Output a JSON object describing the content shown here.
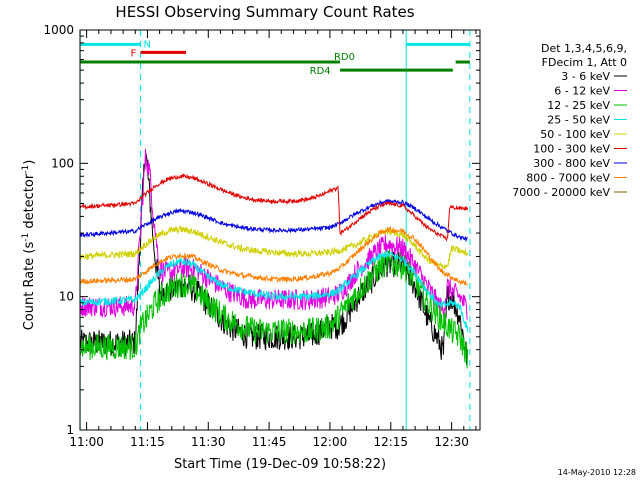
{
  "chart_data": {
    "type": "line",
    "title": "HESSI Observing Summary Count Rates",
    "xlabel": "Start Time (19-Dec-09 10:58:22)",
    "ylabel_main": "Count Rate (s",
    "ylabel_sup1": "-1",
    "ylabel_mid": " detector",
    "ylabel_sup2": "-1",
    "ylabel_end": ")",
    "footer": "14-May-2010 12:28",
    "x_start": "10:58:22",
    "x_end": "12:37:00",
    "xlim_minutes": [
      -1.63,
      97.0
    ],
    "ylim": [
      1,
      1000
    ],
    "y_scale": "log",
    "x_ticks": [
      {
        "label": "11:00",
        "t": 0
      },
      {
        "label": "11:15",
        "t": 15
      },
      {
        "label": "11:30",
        "t": 30
      },
      {
        "label": "11:45",
        "t": 45
      },
      {
        "label": "12:00",
        "t": 60
      },
      {
        "label": "12:15",
        "t": 75
      },
      {
        "label": "12:30",
        "t": 90
      }
    ],
    "y_ticks": [
      {
        "label": "1",
        "v": 1
      },
      {
        "label": "10",
        "v": 10
      },
      {
        "label": "100",
        "v": 100
      },
      {
        "label": "1000",
        "v": 1000
      }
    ],
    "legend_placement": "right",
    "legend_header": [
      "Det 1,3,4,5,6,9,",
      "FDecim 1, Att 0"
    ],
    "series": [
      {
        "name": "3 - 6 keV",
        "color": "#000000",
        "noise": 0.1,
        "points": [
          [
            -1.6,
            4.5
          ],
          [
            12,
            4.5
          ],
          [
            13.5,
            40
          ],
          [
            14.5,
            130
          ],
          [
            15.5,
            60
          ],
          [
            16.5,
            25
          ],
          [
            18,
            11
          ],
          [
            20,
            11
          ],
          [
            24,
            12.5
          ],
          [
            27,
            11
          ],
          [
            31,
            8
          ],
          [
            35,
            6
          ],
          [
            40,
            5
          ],
          [
            45,
            5
          ],
          [
            50,
            5
          ],
          [
            55,
            5
          ],
          [
            60,
            6
          ],
          [
            62,
            6
          ],
          [
            64,
            7
          ],
          [
            67,
            10
          ],
          [
            71,
            14
          ],
          [
            74,
            17.5
          ],
          [
            78,
            17.5
          ],
          [
            81,
            12
          ],
          [
            84,
            7
          ],
          [
            87,
            4.5
          ],
          [
            88,
            3.8
          ],
          [
            89,
            10
          ],
          [
            90,
            10
          ],
          [
            92,
            7
          ],
          [
            93.5,
            4
          ],
          [
            94,
            3
          ]
        ]
      },
      {
        "name": "6 - 12 keV",
        "color": "#e000e0",
        "noise": 0.08,
        "points": [
          [
            -1.6,
            8.5
          ],
          [
            12,
            8.5
          ],
          [
            13.5,
            40
          ],
          [
            14.5,
            110
          ],
          [
            15.5,
            90
          ],
          [
            16.5,
            40
          ],
          [
            18,
            16
          ],
          [
            20,
            15
          ],
          [
            24,
            16.5
          ],
          [
            27,
            16
          ],
          [
            31,
            13
          ],
          [
            35,
            11
          ],
          [
            40,
            9.5
          ],
          [
            45,
            9.5
          ],
          [
            50,
            9.5
          ],
          [
            55,
            9.5
          ],
          [
            60,
            10
          ],
          [
            62,
            10.5
          ],
          [
            64,
            12
          ],
          [
            67,
            16
          ],
          [
            71,
            21
          ],
          [
            74,
            25
          ],
          [
            78,
            23
          ],
          [
            81,
            17
          ],
          [
            84,
            12
          ],
          [
            87,
            8.5
          ],
          [
            88,
            8
          ],
          [
            89,
            12
          ],
          [
            90,
            11
          ],
          [
            92,
            10
          ],
          [
            93.5,
            8.5
          ],
          [
            94,
            8
          ]
        ]
      },
      {
        "name": "12 - 25 keV",
        "color": "#00c000",
        "noise": 0.1,
        "points": [
          [
            -1.6,
            4.2
          ],
          [
            12,
            4.2
          ],
          [
            13.5,
            6
          ],
          [
            15,
            7
          ],
          [
            17,
            9
          ],
          [
            20,
            11
          ],
          [
            23,
            12.5
          ],
          [
            26,
            12
          ],
          [
            30,
            9
          ],
          [
            34,
            7
          ],
          [
            38,
            6
          ],
          [
            42,
            5.5
          ],
          [
            46,
            5.5
          ],
          [
            50,
            5.5
          ],
          [
            55,
            5.5
          ],
          [
            60,
            6
          ],
          [
            62,
            7
          ],
          [
            64,
            8.5
          ],
          [
            67,
            11
          ],
          [
            71,
            15
          ],
          [
            74,
            18
          ],
          [
            78,
            17
          ],
          [
            81,
            13
          ],
          [
            84,
            9
          ],
          [
            87,
            7
          ],
          [
            89,
            6
          ],
          [
            90,
            5.5
          ],
          [
            92,
            5
          ],
          [
            94,
            3.5
          ]
        ]
      },
      {
        "name": "25 - 50 keV",
        "color": "#00e5e5",
        "noise": 0.03,
        "points": [
          [
            -1.6,
            9
          ],
          [
            12,
            9.5
          ],
          [
            14,
            11
          ],
          [
            17,
            14
          ],
          [
            20,
            17
          ],
          [
            23,
            18.5
          ],
          [
            26,
            17.5
          ],
          [
            30,
            14
          ],
          [
            34,
            12
          ],
          [
            38,
            11
          ],
          [
            42,
            10.5
          ],
          [
            46,
            10
          ],
          [
            50,
            10
          ],
          [
            55,
            10
          ],
          [
            60,
            10.5
          ],
          [
            62,
            11
          ],
          [
            64,
            12.5
          ],
          [
            67,
            15
          ],
          [
            71,
            19
          ],
          [
            74,
            21
          ],
          [
            78,
            19
          ],
          [
            81,
            15
          ],
          [
            84,
            11
          ],
          [
            87,
            8.5
          ],
          [
            90,
            9
          ],
          [
            92,
            8.5
          ],
          [
            94,
            5.5
          ]
        ]
      },
      {
        "name": "50 - 100 keV",
        "color": "#d0d000",
        "noise": 0.025,
        "points": [
          [
            -1.6,
            20
          ],
          [
            12,
            21
          ],
          [
            14,
            24
          ],
          [
            17,
            28
          ],
          [
            20,
            31
          ],
          [
            23,
            32
          ],
          [
            26,
            31
          ],
          [
            30,
            28
          ],
          [
            34,
            25
          ],
          [
            38,
            23
          ],
          [
            42,
            22
          ],
          [
            46,
            21.5
          ],
          [
            50,
            21
          ],
          [
            55,
            21
          ],
          [
            60,
            21.5
          ],
          [
            62,
            22
          ],
          [
            64,
            23
          ],
          [
            67,
            25
          ],
          [
            71,
            29
          ],
          [
            74,
            31
          ],
          [
            78,
            29
          ],
          [
            81,
            24
          ],
          [
            84,
            19
          ],
          [
            87,
            17
          ],
          [
            89,
            17
          ],
          [
            90,
            23
          ],
          [
            92,
            22
          ],
          [
            94,
            21
          ]
        ]
      },
      {
        "name": "100 - 300 keV",
        "color": "#e00000",
        "noise": 0.015,
        "points": [
          [
            -1.6,
            47
          ],
          [
            12,
            50
          ],
          [
            14,
            57
          ],
          [
            17,
            68
          ],
          [
            20,
            76
          ],
          [
            23,
            80
          ],
          [
            26,
            78
          ],
          [
            30,
            70
          ],
          [
            34,
            62
          ],
          [
            38,
            56
          ],
          [
            42,
            53
          ],
          [
            46,
            52
          ],
          [
            50,
            52
          ],
          [
            55,
            54
          ],
          [
            58,
            58
          ],
          [
            61,
            64
          ],
          [
            62,
            66
          ],
          [
            62.5,
            30
          ],
          [
            64,
            32
          ],
          [
            67,
            38
          ],
          [
            71,
            46
          ],
          [
            74,
            50
          ],
          [
            78,
            48
          ],
          [
            81,
            40
          ],
          [
            84,
            33
          ],
          [
            87,
            29
          ],
          [
            89,
            27
          ],
          [
            89.5,
            47
          ],
          [
            92,
            46
          ],
          [
            94,
            46
          ]
        ]
      },
      {
        "name": "300 - 800 keV",
        "color": "#0000e0",
        "noise": 0.015,
        "points": [
          [
            -1.6,
            29
          ],
          [
            12,
            31
          ],
          [
            14,
            34
          ],
          [
            17,
            38
          ],
          [
            20,
            42
          ],
          [
            23,
            44
          ],
          [
            26,
            43
          ],
          [
            30,
            39
          ],
          [
            34,
            35
          ],
          [
            38,
            33
          ],
          [
            42,
            32
          ],
          [
            46,
            31.5
          ],
          [
            50,
            31.5
          ],
          [
            55,
            32
          ],
          [
            60,
            33
          ],
          [
            62,
            35
          ],
          [
            64,
            38
          ],
          [
            67,
            43
          ],
          [
            71,
            49
          ],
          [
            74,
            52
          ],
          [
            78,
            51
          ],
          [
            81,
            46
          ],
          [
            84,
            39
          ],
          [
            87,
            34
          ],
          [
            90,
            30
          ],
          [
            92,
            28
          ],
          [
            94,
            27
          ]
        ]
      },
      {
        "name": "800 - 7000 keV",
        "color": "#ff8000",
        "noise": 0.02,
        "points": [
          [
            -1.6,
            13
          ],
          [
            12,
            13.5
          ],
          [
            14,
            15
          ],
          [
            17,
            17.5
          ],
          [
            20,
            19.5
          ],
          [
            23,
            20.5
          ],
          [
            26,
            20
          ],
          [
            30,
            17.5
          ],
          [
            34,
            15.5
          ],
          [
            38,
            14.5
          ],
          [
            42,
            14
          ],
          [
            46,
            13.5
          ],
          [
            50,
            13.5
          ],
          [
            55,
            14
          ],
          [
            60,
            15
          ],
          [
            62,
            16
          ],
          [
            64,
            18
          ],
          [
            67,
            22
          ],
          [
            71,
            28
          ],
          [
            74,
            32
          ],
          [
            78,
            31
          ],
          [
            81,
            27
          ],
          [
            84,
            21
          ],
          [
            87,
            16
          ],
          [
            90,
            14
          ],
          [
            92,
            13
          ],
          [
            94,
            12.5
          ]
        ]
      },
      {
        "name": "7000 - 20000 keV",
        "color": "#806000",
        "noise": 0,
        "points": []
      }
    ],
    "annotations": {
      "flag_labels": [
        {
          "label": "N",
          "color": "#00e5e5"
        },
        {
          "label": "F",
          "color": "#e00000"
        },
        {
          "label": "RD0",
          "color": "#008000"
        },
        {
          "label": "RD4",
          "color": "#008000"
        }
      ],
      "flag_bars": [
        {
          "color": "#00e5e5",
          "t0": -1.6,
          "t1": 13.3,
          "level": 780
        },
        {
          "color": "#00e5e5",
          "t0": 78.8,
          "t1": 94.5,
          "level": 780
        },
        {
          "color": "#e00000",
          "t0": 13.3,
          "t1": 24.5,
          "level": 680
        },
        {
          "color": "#008000",
          "t0": -1.6,
          "t1": 62.5,
          "level": 575
        },
        {
          "color": "#008000",
          "t0": 62.5,
          "t1": 90.3,
          "level": 500
        },
        {
          "color": "#008000",
          "t0": 91.0,
          "t1": 94.5,
          "level": 575
        }
      ],
      "solid_lines_t": [
        -1.6,
        78.8
      ],
      "dashed_lines_t": [
        13.3,
        94.5
      ]
    }
  }
}
